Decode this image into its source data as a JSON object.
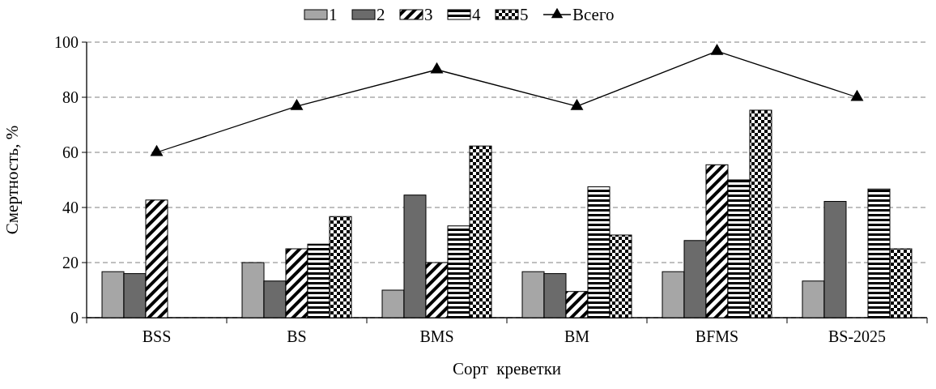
{
  "chart_data": {
    "type": "bar",
    "xlabel": "Сорт  креветки",
    "ylabel": "Смертность, %",
    "categories": [
      "BSS",
      "BS",
      "BMS",
      "BM",
      "BFMS",
      "BS-2025"
    ],
    "series": [
      {
        "name": "1",
        "color": "#a6a6a6",
        "values": [
          16.7,
          20,
          10,
          16.7,
          16.7,
          13.3
        ]
      },
      {
        "name": "2",
        "color": "#6b6b6b",
        "values": [
          16,
          13.3,
          44.5,
          16,
          28,
          42.2
        ]
      },
      {
        "name": "3",
        "color": "#000000",
        "values": [
          42.7,
          25,
          20,
          9.5,
          55.5,
          null
        ]
      },
      {
        "name": "4",
        "color": "#000000",
        "values": [
          null,
          26.7,
          33.3,
          47.5,
          50,
          46.7
        ]
      },
      {
        "name": "5",
        "color": "#000000",
        "values": [
          null,
          36.7,
          62.3,
          30,
          75.3,
          25
        ]
      },
      {
        "name": "Всего",
        "type": "line",
        "color": "#000000",
        "marker": "triangle",
        "values": [
          60,
          76.7,
          90,
          76.7,
          96.7,
          80
        ]
      }
    ],
    "ylim": [
      0,
      100
    ],
    "yticks": [
      0,
      20,
      40,
      60,
      80,
      100
    ],
    "grid": "y",
    "legend": "top"
  }
}
